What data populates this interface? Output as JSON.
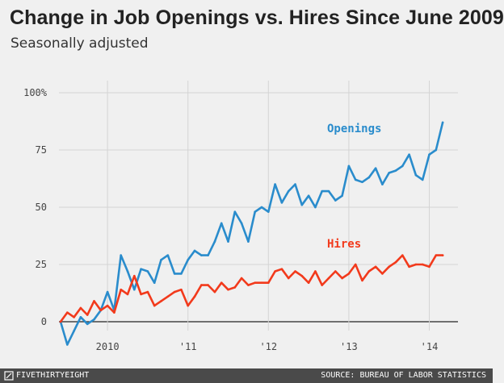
{
  "title": "Change in Job Openings vs. Hires Since June 2009",
  "subtitle": "Seasonally adjusted",
  "footer": {
    "brand": "FIVETHIRTYEIGHT",
    "brand_icon": "fivethirtyeight-logo-icon",
    "source": "SOURCE: BUREAU OF LABOR STATISTICS",
    "background": "#4a4a4a"
  },
  "chart_data": {
    "type": "line",
    "title": "Change in Job Openings vs. Hires Since June 2009",
    "subtitle": "Seasonally adjusted",
    "xlabel": "",
    "ylabel": "",
    "ylim": [
      0,
      100
    ],
    "grid": true,
    "y_ticks": [
      {
        "value": 0,
        "label": "0"
      },
      {
        "value": 25,
        "label": "25"
      },
      {
        "value": 50,
        "label": "50"
      },
      {
        "value": 75,
        "label": "75"
      },
      {
        "value": 100,
        "label": "100%"
      }
    ],
    "x_ticks": [
      {
        "month_index": 7,
        "label": "2010"
      },
      {
        "month_index": 19,
        "label": "'11"
      },
      {
        "month_index": 31,
        "label": "'12"
      },
      {
        "month_index": 43,
        "label": "'13"
      },
      {
        "month_index": 55,
        "label": "'14"
      }
    ],
    "x_start": "June 2009",
    "x_range": [
      -2,
      60
    ],
    "series": [
      {
        "name": "Openings",
        "color": "#2a8ccc",
        "values": [
          0,
          -10,
          -4,
          2,
          -1,
          1,
          5,
          13,
          5,
          29,
          22,
          14,
          23,
          22,
          17,
          27,
          29,
          21,
          21,
          27,
          31,
          29,
          29,
          35,
          43,
          35,
          48,
          43,
          35,
          48,
          50,
          48,
          60,
          52,
          57,
          60,
          51,
          55,
          50,
          57,
          57,
          53,
          55,
          68,
          62,
          61,
          63,
          67,
          60,
          65,
          66,
          68,
          73,
          64,
          62,
          73,
          75,
          87
        ]
      },
      {
        "name": "Hires",
        "color": "#f23a1c",
        "values": [
          0,
          4,
          2,
          6,
          3,
          9,
          5,
          7,
          4,
          14,
          12,
          20,
          12,
          13,
          7,
          9,
          11,
          13,
          14,
          7,
          11,
          16,
          16,
          13,
          17,
          14,
          15,
          19,
          16,
          17,
          17,
          17,
          22,
          23,
          19,
          22,
          20,
          17,
          22,
          16,
          19,
          22,
          19,
          21,
          25,
          18,
          22,
          24,
          21,
          24,
          26,
          29,
          24,
          25,
          25,
          24,
          29,
          29
        ]
      }
    ]
  }
}
